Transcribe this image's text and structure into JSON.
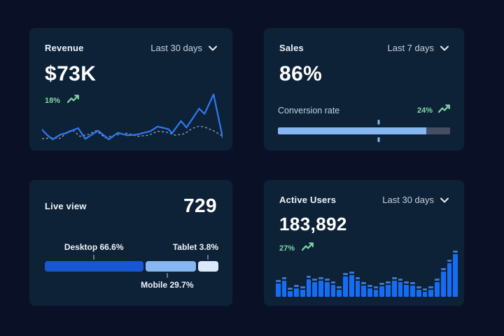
{
  "page": {
    "background": "#0a1126",
    "card_background": "#0d2237"
  },
  "colors": {
    "title_text": "#eef3f9",
    "muted_text": "#c6d1e0",
    "positive_green": "#7fd8a2",
    "line_blue": "#3079f2",
    "line_dashed_gray": "#93a5bc",
    "bar_blue": "#146ef5",
    "bar_cap_blue": "#3d77c9",
    "desktop_blue": "#1857d2",
    "light_blue": "#87b7f1",
    "tablet_pale_blue": "#dce9fb",
    "track_gray": "#454e63"
  },
  "cards": {
    "revenue": {
      "title": "Revenue",
      "period": "Last 30 days",
      "value": "$73K",
      "change": "18%",
      "trend": "up"
    },
    "sales": {
      "title": "Sales",
      "period": "Last 7 days",
      "value": "86%",
      "metric_label": "Conversion rate",
      "change": "24%",
      "trend": "up"
    },
    "live_view": {
      "title": "Live view",
      "value": "729",
      "segments": [
        {
          "label": "Desktop 66.6%",
          "percent": 66.6
        },
        {
          "label": "Mobile 29.7%",
          "percent": 29.7
        },
        {
          "label": "Tablet 3.8%",
          "percent": 3.8
        }
      ]
    },
    "active_users": {
      "title": "Active Users",
      "period": "Last 30 days",
      "value": "183,892",
      "change": "27%",
      "trend": "up"
    }
  },
  "icons": {
    "chevron_down": "chevron-down",
    "trend_up_arrow": "trending-up-arrow"
  },
  "chart_data": [
    {
      "id": "revenue_line",
      "type": "line",
      "title": "Revenue - Last 30 days",
      "value_label": "$73K",
      "change_label": "18%",
      "unit": "relative 0-100 (estimated from pixels; chart has no axes or gridlines)",
      "legend": "none",
      "series": [
        {
          "name": "current",
          "style": "solid",
          "color": "#3079f2",
          "points": [
            [
              0,
              23
            ],
            [
              3,
              12
            ],
            [
              6,
              4
            ],
            [
              10,
              13
            ],
            [
              13,
              16
            ],
            [
              20,
              26
            ],
            [
              24,
              5
            ],
            [
              31,
              21
            ],
            [
              37,
              4
            ],
            [
              42,
              17
            ],
            [
              47,
              12
            ],
            [
              52,
              13
            ],
            [
              60,
              20
            ],
            [
              64,
              29
            ],
            [
              70,
              24
            ],
            [
              72,
              16
            ],
            [
              77,
              40
            ],
            [
              80,
              27
            ],
            [
              87,
              64
            ],
            [
              90,
              54
            ],
            [
              95,
              92
            ],
            [
              100,
              8
            ]
          ]
        },
        {
          "name": "previous",
          "style": "dashed",
          "color": "#93a5bc",
          "points": [
            [
              0,
              5
            ],
            [
              5,
              7
            ],
            [
              10,
              6
            ],
            [
              15,
              20
            ],
            [
              17,
              22
            ],
            [
              21,
              10
            ],
            [
              26,
              14
            ],
            [
              30,
              21
            ],
            [
              35,
              7
            ],
            [
              40,
              12
            ],
            [
              47,
              16
            ],
            [
              53,
              10
            ],
            [
              59,
              12
            ],
            [
              64,
              20
            ],
            [
              69,
              18
            ],
            [
              74,
              12
            ],
            [
              79,
              15
            ],
            [
              83,
              25
            ],
            [
              87,
              30
            ],
            [
              90,
              28
            ],
            [
              95,
              21
            ],
            [
              100,
              10
            ]
          ]
        }
      ]
    },
    {
      "id": "sales_progress",
      "type": "progress_bar",
      "title": "Sales conversion rate - Last 7 days",
      "value_percent": 86,
      "marker_percent": 58.5,
      "change_label": "24%",
      "fill_color": "#87b7f1",
      "track_color": "#454e63"
    },
    {
      "id": "live_view_split",
      "type": "stacked_bar",
      "title": "Live view device split",
      "total_label": "729",
      "segments": [
        {
          "label": "Desktop",
          "percent": 66.6,
          "visual_width": 57.0,
          "color": "#1857d2",
          "anchor_percent": 28.3,
          "label_side": "top"
        },
        {
          "label": "Mobile",
          "percent": 29.7,
          "visual_width": 28.8,
          "color": "#87b7f1",
          "anchor_percent": 70.5,
          "label_side": "bottom"
        },
        {
          "label": "Tablet",
          "percent": 3.8,
          "visual_width": 11.8,
          "color": "#dce9fb",
          "anchor_percent": 93.9,
          "label_side": "top"
        }
      ]
    },
    {
      "id": "active_users_bars",
      "type": "bar",
      "title": "Active Users - Last 30 days",
      "value_label": "183,892",
      "change_label": "27%",
      "unit": "relative % of tallest bar (estimated from pixels; chart has no axes)",
      "bar_color": "#146ef5",
      "cap_color": "#3d77c9",
      "values": [
        37,
        42,
        20,
        26,
        23,
        46,
        39,
        42,
        39,
        34,
        22,
        51,
        55,
        43,
        32,
        26,
        23,
        31,
        34,
        43,
        39,
        34,
        32,
        22,
        18,
        23,
        40,
        62,
        80,
        100
      ]
    }
  ]
}
